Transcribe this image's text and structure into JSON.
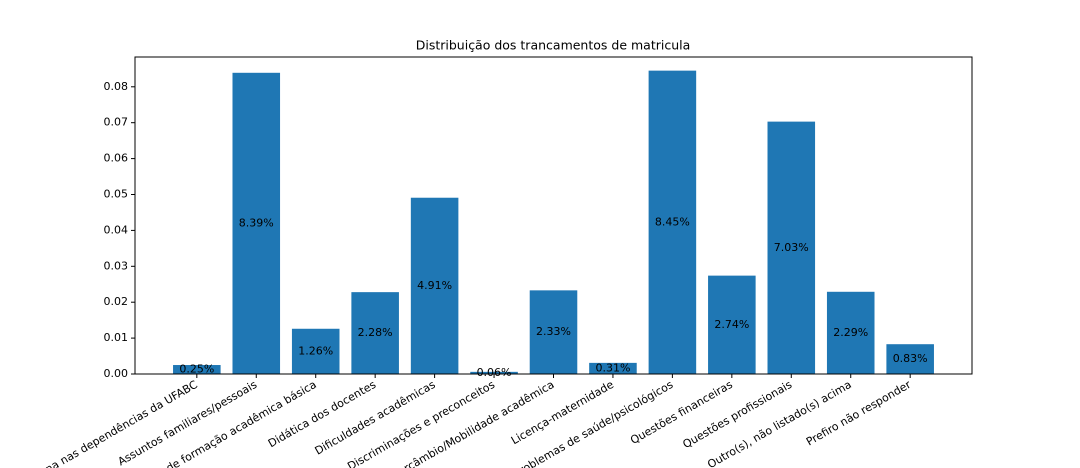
{
  "chart_data": {
    "type": "bar",
    "title": "Distribuição dos trancamentos de matricula",
    "categories": [
      "rna nas dependências da UFABC",
      "Assuntos familiares/pessoais",
      "cit de formação acadêmica básica",
      "Didática dos docentes",
      "Dificuldades acadêmicas",
      "Discriminações e preconceitos",
      "ntercâmbio/Mobilidade acadêmica",
      "Licença-maternidade",
      "Problemas de saúde/psicológicos",
      "Questões financeiras",
      "Questões profissionais",
      "Outro(s), não listado(s) acima",
      "Prefiro não responder"
    ],
    "values": [
      0.0025,
      0.0839,
      0.0126,
      0.0228,
      0.0491,
      0.0006,
      0.0233,
      0.0031,
      0.0845,
      0.0274,
      0.0703,
      0.0229,
      0.0083
    ],
    "value_labels": [
      "0.25%",
      "8.39%",
      "1.26%",
      "2.28%",
      "4.91%",
      "0.06%",
      "2.33%",
      "0.31%",
      "8.45%",
      "2.74%",
      "7.03%",
      "2.29%",
      "0.83%"
    ],
    "color": "#1f77b4",
    "ylim": [
      0,
      0.0883
    ],
    "yticks": [
      {
        "value": 0,
        "label": "0.00"
      },
      {
        "value": 0.01,
        "label": "0.01"
      },
      {
        "value": 0.02,
        "label": "0.02"
      },
      {
        "value": 0.03,
        "label": "0.03"
      },
      {
        "value": 0.04,
        "label": "0.04"
      },
      {
        "value": 0.05,
        "label": "0.05"
      },
      {
        "value": 0.06,
        "label": "0.06"
      },
      {
        "value": 0.07,
        "label": "0.07"
      },
      {
        "value": 0.08,
        "label": "0.08"
      }
    ],
    "grid": false
  }
}
